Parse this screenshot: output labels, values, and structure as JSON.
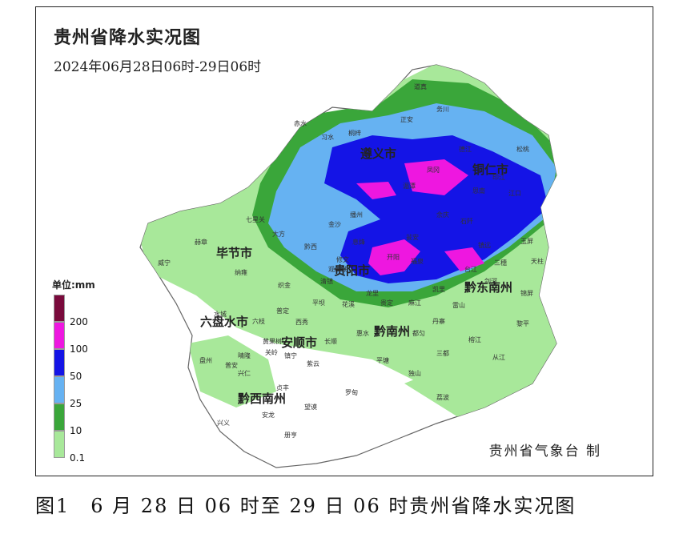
{
  "map": {
    "title": "贵州省降水实况图",
    "subtitle": "2024年06月28日06时-29日06时",
    "credit": "贵州省气象台 制",
    "legend": {
      "title": "单位:mm",
      "levels": [
        {
          "label": "200",
          "color": "#7a0a3c"
        },
        {
          "label": "100",
          "color": "#ee17e0"
        },
        {
          "label": "50",
          "color": "#1414e6"
        },
        {
          "label": "25",
          "color": "#66b2f2"
        },
        {
          "label": "10",
          "color": "#3aa63a"
        },
        {
          "label": "0.1",
          "color": "#a8e89a"
        }
      ]
    },
    "cities": [
      "遵义市",
      "铜仁市",
      "毕节市",
      "贵阳市",
      "黔东南州",
      "六盘水市",
      "安顺市",
      "黔南州",
      "黔西南州"
    ],
    "counties": [
      "道真",
      "务川",
      "正安",
      "赤水",
      "习水",
      "桐梓",
      "湄潭",
      "凤冈",
      "德江",
      "松桃",
      "江口",
      "石阡",
      "思南",
      "印江",
      "玉屏",
      "七星关",
      "大方",
      "金沙",
      "黔西",
      "赫章",
      "威宁",
      "纳雍",
      "织金",
      "清镇",
      "修文",
      "息烽",
      "开阳",
      "播州",
      "余庆",
      "瓮安",
      "福泉",
      "凯里",
      "镇远",
      "三穗",
      "天柱",
      "锦屏",
      "剑河",
      "台江",
      "黎平",
      "榕江",
      "从江",
      "雷山",
      "丹寨",
      "麻江",
      "都匀",
      "贵定",
      "龙里",
      "惠水",
      "长顺",
      "平塘",
      "独山",
      "三都",
      "荔波",
      "罗甸",
      "望谟",
      "册亨",
      "安龙",
      "兴仁",
      "兴义",
      "普安",
      "晴隆",
      "盘州",
      "水城",
      "六枝",
      "关岭",
      "镇宁",
      "紫云",
      "普定",
      "平坝",
      "西秀",
      "黄果树",
      "贞丰",
      "花溪",
      "观山湖"
    ]
  },
  "caption": "图1　6 月 28 日 06 时至 29 日 06 时贵州省降水实况图"
}
